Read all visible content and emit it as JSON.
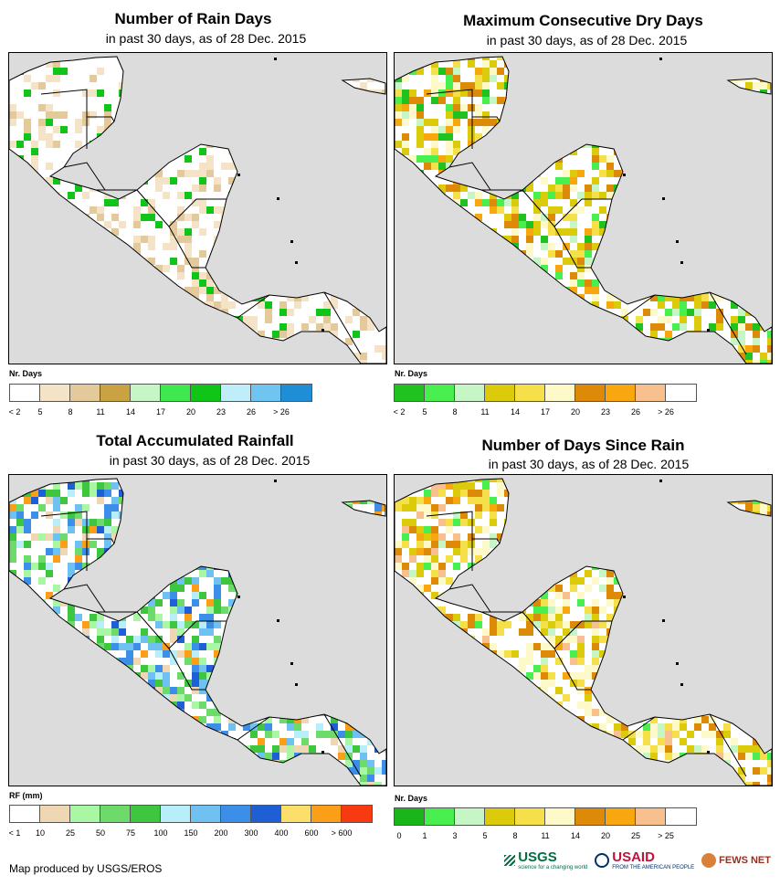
{
  "panels": [
    {
      "title": "Number of Rain Days",
      "subtitle": "in past 30 days, as of 28 Dec. 2015",
      "legend_title": "Nr. Days",
      "colors": [
        "#ffffff",
        "#f5e3c8",
        "#e4c99a",
        "#c9a242",
        "#c6f5c6",
        "#3ee84e",
        "#10c418",
        "#bfeefa",
        "#6fc5ef",
        "#1f8ed6"
      ],
      "ticks": [
        "< 2",
        "5",
        "8",
        "11",
        "14",
        "17",
        "20",
        "23",
        "26",
        "> 26"
      ]
    },
    {
      "title": "Maximum Consecutive Dry Days",
      "subtitle": "in past 30 days, as of 28 Dec. 2015",
      "legend_title": "Nr. Days",
      "colors": [
        "#1fc21f",
        "#49ee4f",
        "#c6f5c6",
        "#dccb0a",
        "#f5e04a",
        "#fef9c8",
        "#dd8a08",
        "#f8a70e",
        "#f8c08e",
        "#ffffff"
      ],
      "ticks": [
        "< 2",
        "5",
        "8",
        "11",
        "14",
        "17",
        "20",
        "23",
        "26",
        "> 26"
      ]
    },
    {
      "title": "Total Accumulated Rainfall",
      "subtitle": "in past 30 days, as of 28 Dec. 2015",
      "legend_title": "RF (mm)",
      "colors": [
        "#ffffff",
        "#f0d7b4",
        "#a9f7a4",
        "#6cdb6a",
        "#3fc63f",
        "#b8eefa",
        "#6fc1f1",
        "#3c8fe8",
        "#1f5fd6",
        "#fcdf6a",
        "#fb9e18",
        "#f83a10"
      ],
      "ticks": [
        "< 1",
        "10",
        "25",
        "50",
        "75",
        "100",
        "150",
        "200",
        "300",
        "400",
        "600",
        "> 600"
      ]
    },
    {
      "title": "Number of Days Since Rain",
      "subtitle": "in past 30 days, as of 28 Dec. 2015",
      "legend_title": "Nr. Days",
      "colors": [
        "#1ab51a",
        "#49ee4f",
        "#c6f5c6",
        "#dccb0a",
        "#f5e04a",
        "#fef9c8",
        "#dd8a08",
        "#f8a70e",
        "#f8c08e",
        "#ffffff"
      ],
      "ticks": [
        "0",
        "1",
        "3",
        "5",
        "8",
        "11",
        "14",
        "20",
        "25",
        "> 25"
      ]
    }
  ],
  "footer": "Map produced by USGS/EROS",
  "logos": {
    "usgs": "USGS",
    "usgs_tag": "science for a changing world",
    "usaid": "USAID",
    "usaid_tag": "FROM THE AMERICAN PEOPLE",
    "fews": "FEWS NET"
  }
}
